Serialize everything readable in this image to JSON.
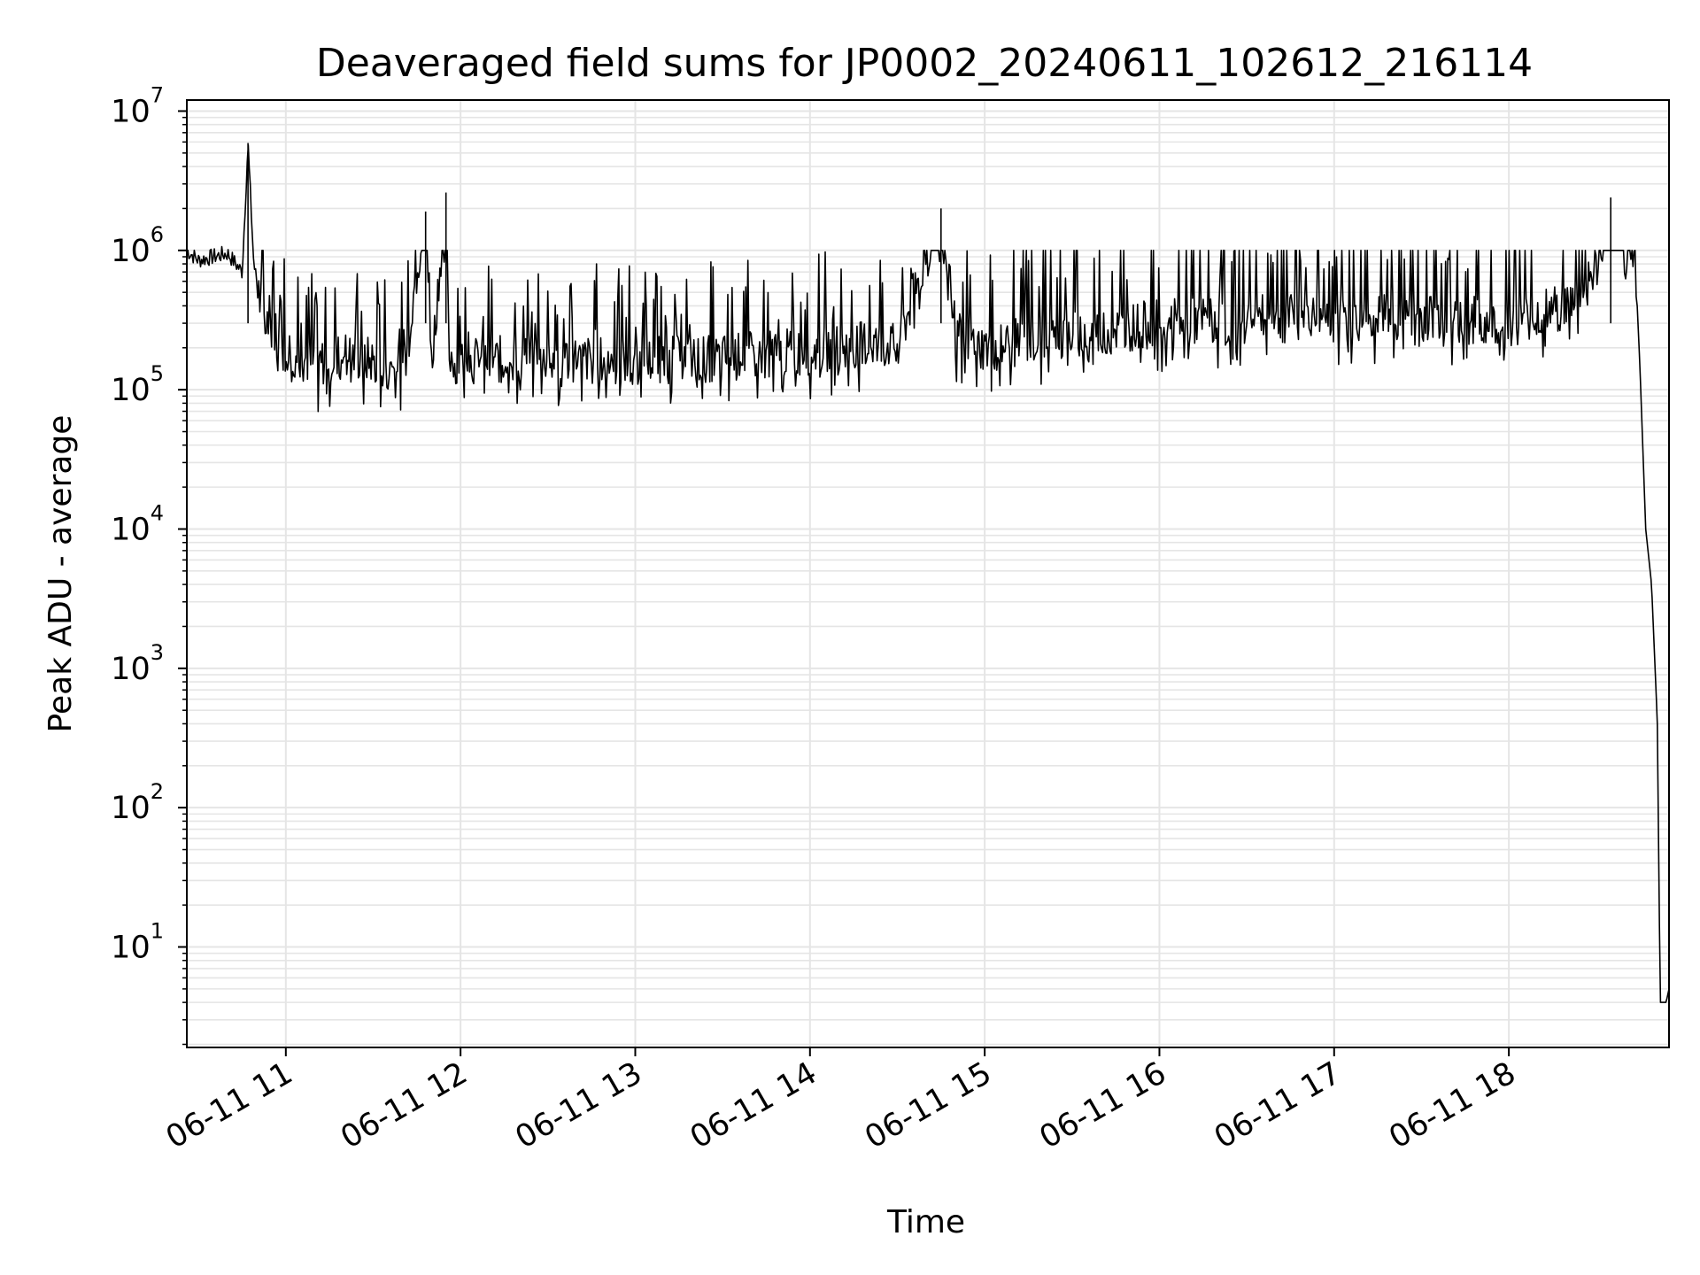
{
  "chart_data": {
    "type": "line",
    "title": "Deaveraged field sums for JP0002_20240611_102612_216114",
    "xlabel": "Time",
    "ylabel": "Peak ADU - average",
    "yscale": "log",
    "ylim": [
      1.9,
      12000000
    ],
    "xlim": [
      "2024-06-11 10:26",
      "2024-06-11 18:55"
    ],
    "grid": true,
    "line_color": "#000000",
    "grid_color": "#e5e5e5",
    "x_ticks": [
      "06-11 11",
      "06-11 12",
      "06-11 13",
      "06-11 14",
      "06-11 15",
      "06-11 16",
      "06-11 17",
      "06-11 18"
    ],
    "y_ticks": [
      {
        "base": "10",
        "exp": "1",
        "value": 10
      },
      {
        "base": "10",
        "exp": "2",
        "value": 100
      },
      {
        "base": "10",
        "exp": "3",
        "value": 1000
      },
      {
        "base": "10",
        "exp": "4",
        "value": 10000
      },
      {
        "base": "10",
        "exp": "5",
        "value": 100000
      },
      {
        "base": "10",
        "exp": "6",
        "value": 1000000
      },
      {
        "base": "10",
        "exp": "7",
        "value": 10000000
      }
    ],
    "series": [
      {
        "x": [
          "2024-06-11 10:26",
          "2024-06-11 10:30",
          "2024-06-11 10:35",
          "2024-06-11 10:40",
          "2024-06-11 10:45",
          "2024-06-11 10:47",
          "2024-06-11 10:49",
          "2024-06-11 10:52",
          "2024-06-11 11:00",
          "2024-06-11 11:10",
          "2024-06-11 11:20",
          "2024-06-11 11:30",
          "2024-06-11 11:40",
          "2024-06-11 11:48",
          "2024-06-11 11:50",
          "2024-06-11 11:55",
          "2024-06-11 11:56",
          "2024-06-11 12:00",
          "2024-06-11 12:30",
          "2024-06-11 13:00",
          "2024-06-11 13:30",
          "2024-06-11 14:00",
          "2024-06-11 14:20",
          "2024-06-11 14:30",
          "2024-06-11 14:45",
          "2024-06-11 14:50",
          "2024-06-11 15:00",
          "2024-06-11 15:30",
          "2024-06-11 16:00",
          "2024-06-11 16:30",
          "2024-06-11 17:00",
          "2024-06-11 17:30",
          "2024-06-11 18:00",
          "2024-06-11 18:20",
          "2024-06-11 18:30",
          "2024-06-11 18:35",
          "2024-06-11 18:40",
          "2024-06-11 18:43",
          "2024-06-11 18:45",
          "2024-06-11 18:47",
          "2024-06-11 18:49",
          "2024-06-11 18:51",
          "2024-06-11 18:52",
          "2024-06-11 18:54",
          "2024-06-11 18:55"
        ],
        "y": [
          1000000,
          850000,
          900000,
          950000,
          700000,
          5900000,
          800000,
          350000,
          200000,
          150000,
          180000,
          160000,
          140000,
          1900000,
          150000,
          2600000,
          180000,
          160000,
          170000,
          160000,
          170000,
          190000,
          220000,
          200000,
          2000000,
          250000,
          200000,
          250000,
          300000,
          320000,
          330000,
          340000,
          300000,
          400000,
          700000,
          2400000,
          900000,
          1300000,
          150000,
          10000,
          4000,
          400,
          4,
          4,
          5
        ]
      }
    ]
  }
}
